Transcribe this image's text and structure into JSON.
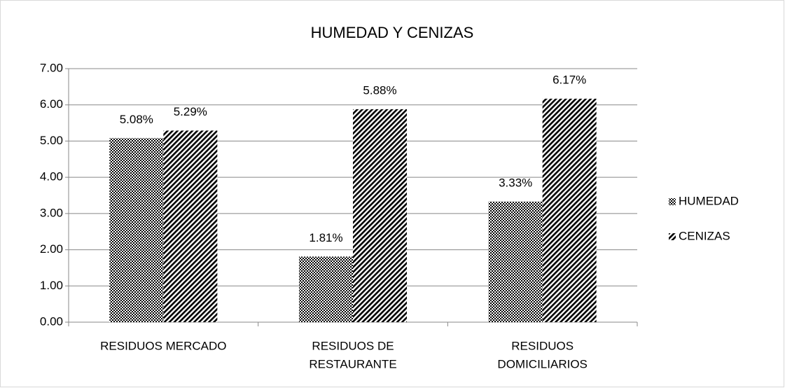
{
  "chart_data": {
    "type": "bar",
    "title": "HUMEDAD Y CENIZAS",
    "categories": [
      [
        "RESIDUOS MERCADO"
      ],
      [
        "RESIDUOS DE",
        "RESTAURANTE"
      ],
      [
        "RESIDUOS",
        "DOMICILIARIOS"
      ]
    ],
    "series": [
      {
        "name": "HUMEDAD",
        "color": "#000000",
        "pattern": "dots",
        "values": [
          5.08,
          1.81,
          3.33
        ],
        "value_labels": [
          "5.08%",
          "1.81%",
          "3.33%"
        ]
      },
      {
        "name": "CENIZAS",
        "color": "#000000",
        "pattern": "stripes",
        "values": [
          5.29,
          5.88,
          6.17
        ],
        "value_labels": [
          "5.29%",
          "5.88%",
          "6.17%"
        ]
      }
    ],
    "ylim": [
      0,
      7
    ],
    "yticks": [
      {
        "value": 0,
        "label": "0.00"
      },
      {
        "value": 1,
        "label": "1.00"
      },
      {
        "value": 2,
        "label": "2.00"
      },
      {
        "value": 3,
        "label": "3.00"
      },
      {
        "value": 4,
        "label": "4.00"
      },
      {
        "value": 5,
        "label": "5.00"
      },
      {
        "value": 6,
        "label": "6.00"
      },
      {
        "value": 7,
        "label": "7.00"
      }
    ],
    "grid": true,
    "legend": "right"
  }
}
